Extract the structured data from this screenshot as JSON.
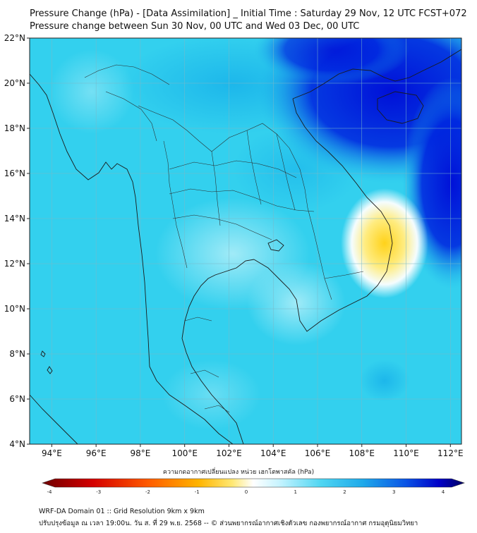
{
  "header": {
    "title": "Pressure Change (hPa) - [Data Assimilation] _ Initial Time : Saturday 29 Nov, 12 UTC FCST+072",
    "subtitle": "Pressure change between Sun 30 Nov, 00 UTC and Wed 03 Dec, 00 UTC"
  },
  "axes": {
    "lat_labels": [
      "4°N",
      "6°N",
      "8°N",
      "10°N",
      "12°N",
      "14°N",
      "16°N",
      "18°N",
      "20°N",
      "22°N"
    ],
    "lon_labels": [
      "94°E",
      "96°E",
      "98°E",
      "100°E",
      "102°E",
      "104°E",
      "106°E",
      "108°E",
      "110°E",
      "112°E"
    ]
  },
  "colorbar": {
    "label": "ความกดอากาศเปลี่ยนแปลง หน่วย เฮกโตพาสคัล (hPa)",
    "ticks": [
      "-4",
      "-3",
      "-2",
      "-1",
      "0",
      "1",
      "2",
      "3",
      "4"
    ],
    "colors": [
      "#6e0000",
      "#d40000",
      "#ff5a00",
      "#ffb400",
      "#ffe873",
      "#ffffff",
      "#c8f4ff",
      "#4fd6f2",
      "#1ea9ea",
      "#0a55e6",
      "#0000c8",
      "#000060"
    ]
  },
  "field_colors": {
    "base": "#33d0ee",
    "light": "#a6ecf8",
    "mid": "#1ab4ea",
    "deep": "#0010d8",
    "white": "#ffffff",
    "yellow": "#ffd21a"
  },
  "footer": {
    "line1": "WRF-DA Domain 01 :: Grid Resolution 9km x 9km",
    "line2": "ปรับปรุงข้อมูล ณ เวลา 19:00น. วัน ส. ที่ 29 พ.ย. 2568 -- © ส่วนพยากรณ์อากาศเชิงตัวเลข กองพยากรณ์อากาศ กรมอุตุนิยมวิทยา"
  }
}
